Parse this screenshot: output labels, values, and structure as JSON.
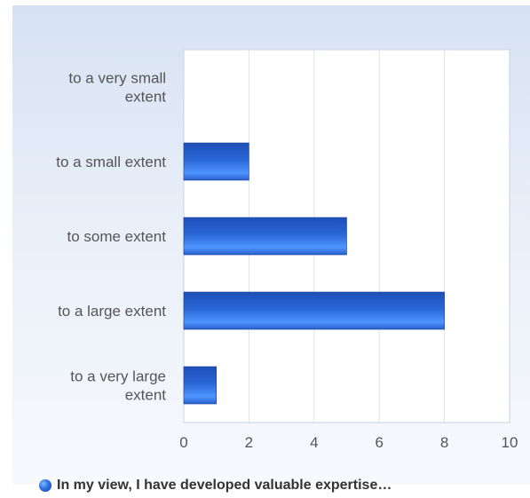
{
  "chart_data": {
    "type": "bar",
    "orientation": "horizontal",
    "categories": [
      "to a very small extent",
      "to a small extent",
      "to some extent",
      "to a large extent",
      "to a very large extent"
    ],
    "category_label_lines": [
      [
        "to a very small",
        "extent"
      ],
      [
        "to a small extent"
      ],
      [
        "to some extent"
      ],
      [
        "to a large extent"
      ],
      [
        "to a very large",
        "extent"
      ]
    ],
    "series": [
      {
        "name": "In my view, I have developed valuable expertise…",
        "values": [
          0,
          2,
          5,
          8,
          1
        ],
        "color": "#2f6fe0"
      }
    ],
    "xlim": [
      0,
      10
    ],
    "xticks": [
      "0",
      "2",
      "4",
      "6",
      "8",
      "10"
    ],
    "grid": true,
    "legend_position": "bottom"
  },
  "legend": {
    "label": "In my view, I have developed valuable expertise…"
  }
}
